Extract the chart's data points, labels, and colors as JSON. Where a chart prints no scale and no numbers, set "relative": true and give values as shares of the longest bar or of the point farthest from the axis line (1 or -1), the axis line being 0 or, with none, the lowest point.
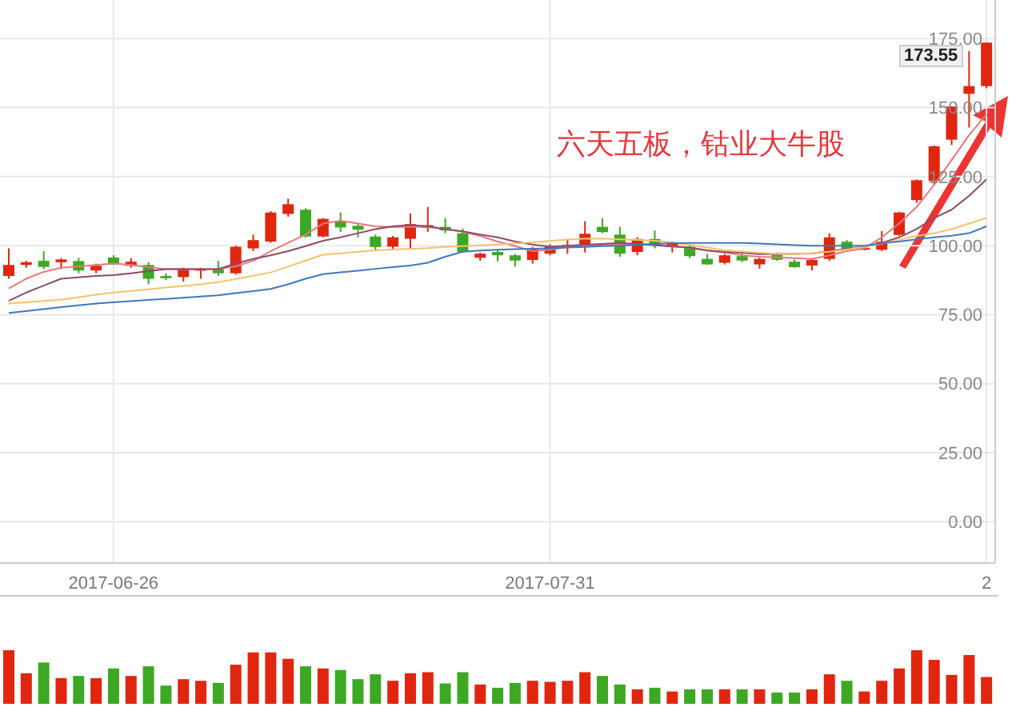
{
  "chart_data": [
    {
      "type": "candlestick",
      "annotations": [
        "六天五板，钴业大牛股",
        "173.55"
      ],
      "categories": [
        null,
        null,
        null,
        null,
        null,
        null,
        "2017-06-26",
        null,
        null,
        null,
        null,
        null,
        null,
        null,
        null,
        null,
        null,
        null,
        null,
        null,
        null,
        null,
        null,
        null,
        null,
        null,
        null,
        null,
        null,
        null,
        null,
        "2017-07-31",
        null,
        null,
        null,
        null,
        null,
        null,
        null,
        null,
        null,
        null,
        null,
        null,
        null,
        null,
        null,
        null,
        null,
        null,
        null,
        null,
        null,
        null,
        null,
        null,
        "2"
      ],
      "ohlc": [
        [
          89,
          99,
          88,
          93
        ],
        [
          93,
          94.5,
          92,
          94
        ],
        [
          94.5,
          98,
          91.5,
          92.3
        ],
        [
          94,
          95.5,
          91.5,
          95
        ],
        [
          94.4,
          95.6,
          90,
          91
        ],
        [
          91,
          93.5,
          90,
          92.7
        ],
        [
          95.7,
          96.5,
          93,
          93.2
        ],
        [
          92.7,
          95.5,
          92,
          94.2
        ],
        [
          93,
          94,
          86,
          88
        ],
        [
          89,
          90,
          87.5,
          88.2
        ],
        [
          88.6,
          92,
          87,
          91.5
        ],
        [
          91,
          92,
          88,
          91.5
        ],
        [
          91.5,
          94.5,
          89,
          90
        ],
        [
          90,
          100,
          89.5,
          99.6
        ],
        [
          99,
          104,
          98,
          102
        ],
        [
          101.5,
          112.5,
          101,
          112
        ],
        [
          111.5,
          117,
          110.5,
          115
        ],
        [
          113,
          113.5,
          103,
          103.3
        ],
        [
          103.3,
          110,
          103,
          109.7
        ],
        [
          109,
          112,
          105,
          106.6
        ],
        [
          107.2,
          108,
          103,
          105.8
        ],
        [
          103.3,
          104,
          98,
          99.5
        ],
        [
          99.6,
          103.5,
          98.5,
          103
        ],
        [
          102.5,
          111.7,
          98.7,
          107.8
        ],
        [
          106.5,
          114,
          105,
          107.4
        ],
        [
          106.8,
          110,
          104.5,
          105.5
        ],
        [
          104.5,
          106.2,
          97.5,
          97.7
        ],
        [
          95.6,
          97.5,
          94.5,
          97.1
        ],
        [
          97.7,
          98.5,
          94.3,
          96.5
        ],
        [
          96.5,
          97,
          92.4,
          94.6
        ],
        [
          94.8,
          99.5,
          93.5,
          98.7
        ],
        [
          97.1,
          100.5,
          96.5,
          99.6
        ],
        [
          100,
          102.5,
          97,
          100.2
        ],
        [
          99.5,
          108.8,
          97.5,
          104.3
        ],
        [
          106.8,
          110,
          104.5,
          104.9
        ],
        [
          104,
          106.8,
          96,
          97.1
        ],
        [
          97.7,
          103,
          96.5,
          102.4
        ],
        [
          102.4,
          105.5,
          99,
          100
        ],
        [
          99.5,
          101.5,
          97.5,
          101
        ],
        [
          99.6,
          100.5,
          95.5,
          96.2
        ],
        [
          95.2,
          97,
          93,
          93.2
        ],
        [
          93.8,
          97,
          93.2,
          96.5
        ],
        [
          96.2,
          97.2,
          94,
          94.6
        ],
        [
          93.2,
          95.6,
          91.7,
          95.2
        ],
        [
          96.7,
          97.5,
          94.5,
          94.9
        ],
        [
          94.2,
          95,
          92,
          92.2
        ],
        [
          92.8,
          95.5,
          91,
          94.8
        ],
        [
          95.2,
          104.5,
          94.5,
          103
        ],
        [
          101.4,
          102,
          98,
          98.5
        ],
        [
          98.8,
          99.5,
          98.3,
          99.1
        ],
        [
          98.5,
          105.3,
          98,
          101.4
        ],
        [
          103.9,
          112.2,
          103.5,
          112
        ],
        [
          116.5,
          124,
          115.5,
          123.7
        ],
        [
          123.4,
          136.3,
          122,
          136
        ],
        [
          138.4,
          150.5,
          136.5,
          150.4
        ],
        [
          155,
          170.5,
          142.8,
          157.8
        ],
        [
          157.8,
          173.55,
          157,
          173.55
        ]
      ],
      "colors": [
        "#e0260f",
        "#e0260f",
        "#3da823",
        "#e0260f",
        "#3da823",
        "#e0260f",
        "#3da823",
        "#e0260f",
        "#3da823",
        "#3da823",
        "#e0260f",
        "#e0260f",
        "#3da823",
        "#e0260f",
        "#e0260f",
        "#e0260f",
        "#e0260f",
        "#3da823",
        "#e0260f",
        "#3da823",
        "#3da823",
        "#3da823",
        "#e0260f",
        "#e0260f",
        "#e0260f",
        "#3da823",
        "#3da823",
        "#e0260f",
        "#3da823",
        "#3da823",
        "#e0260f",
        "#e0260f",
        "#e0260f",
        "#e0260f",
        "#3da823",
        "#3da823",
        "#e0260f",
        "#3da823",
        "#e0260f",
        "#3da823",
        "#3da823",
        "#e0260f",
        "#3da823",
        "#e0260f",
        "#3da823",
        "#3da823",
        "#e0260f",
        "#e0260f",
        "#3da823",
        "#e0260f",
        "#e0260f",
        "#e0260f",
        "#e0260f",
        "#e0260f",
        "#e0260f",
        "#e0260f",
        "#e0260f"
      ],
      "series": [
        {
          "type": "line",
          "color": "#e8787c",
          "values": [
            84.5,
            88,
            90.5,
            92,
            92.5,
            93,
            93.5,
            93,
            92.2,
            91.5,
            91.5,
            91.5,
            91.5,
            92.5,
            94.5,
            98,
            101,
            104,
            108,
            109,
            108,
            107,
            106.8,
            106.8,
            106.8,
            106,
            105,
            103.5,
            101.5,
            99.8,
            98,
            98.5,
            99.5,
            100,
            100.2,
            100.3,
            100.3,
            100.3,
            99.8,
            99.2,
            98.2,
            97.5,
            96.5,
            96,
            95.8,
            95.5,
            95.2,
            96.5,
            98,
            99,
            103,
            108,
            114,
            122,
            131,
            140,
            147.6
          ]
        },
        {
          "type": "line",
          "color": "#8e4a66",
          "values": [
            80,
            83,
            85.5,
            88,
            88.5,
            89,
            89.3,
            90,
            90.8,
            91.5,
            91.5,
            91.5,
            91.5,
            93.5,
            95.2,
            96.5,
            98,
            99.8,
            101.8,
            103,
            104.5,
            106,
            107,
            107.5,
            107,
            106,
            105.2,
            104,
            103,
            101.5,
            100.4,
            99.6,
            100,
            100.3,
            100.6,
            101,
            100.6,
            100.2,
            99.7,
            99.3,
            98.3,
            97.7,
            97.4,
            96.9,
            97,
            97,
            97.2,
            98,
            98.8,
            99.6,
            101,
            103,
            106,
            110,
            113,
            118,
            124
          ]
        },
        {
          "type": "line",
          "color": "#f5c26b",
          "values": [
            79,
            79.5,
            80,
            80.4,
            81.3,
            82.2,
            83,
            83.6,
            84.2,
            84.8,
            85.4,
            86,
            86.8,
            87.9,
            89.1,
            90.3,
            92.4,
            94.6,
            96.7,
            97.2,
            97.8,
            98.3,
            98.6,
            98.8,
            99.1,
            99.5,
            99.8,
            100.1,
            100.4,
            100.8,
            101.2,
            101.7,
            102.2,
            102.6,
            102.5,
            102.3,
            102.1,
            101.8,
            101.2,
            100.3,
            99.3,
            98.4,
            97.9,
            97.4,
            97.1,
            97,
            97.3,
            97.8,
            98.6,
            99.5,
            100.7,
            102.1,
            103.5,
            104.5,
            106,
            108,
            110
          ]
        },
        {
          "type": "line",
          "color": "#3f78bd",
          "values": [
            75.6,
            76.3,
            77,
            77.7,
            78.4,
            79,
            79.5,
            79.9,
            80.3,
            80.7,
            81.1,
            81.6,
            82,
            82.8,
            83.5,
            84.3,
            86,
            88,
            89.7,
            90.3,
            90.9,
            91.6,
            92.2,
            92.8,
            93.8,
            96,
            97.8,
            98.2,
            98.5,
            98.7,
            98.9,
            99,
            99.3,
            99.5,
            99.8,
            100,
            100.3,
            100.6,
            100.9,
            101,
            101,
            101,
            101,
            100.8,
            100.5,
            100.2,
            100,
            100,
            100,
            100,
            100.8,
            101.5,
            102.3,
            103,
            103.6,
            104.5,
            107
          ]
        }
      ],
      "ylim": [
        -15,
        189
      ],
      "yticks": [
        {
          "value": 0,
          "label": "0.00"
        },
        {
          "value": 25,
          "label": "25.00"
        },
        {
          "value": 50,
          "label": "50.00"
        },
        {
          "value": 75,
          "label": "75.00"
        },
        {
          "value": 100,
          "label": "100.00"
        },
        {
          "value": 125,
          "label": "125.00"
        },
        {
          "value": 150,
          "label": "150.00"
        },
        {
          "value": 175,
          "label": "175.00"
        }
      ],
      "grid": true,
      "legend": false,
      "marker": "none",
      "line_style": "solid"
    },
    {
      "type": "bar",
      "relative": true,
      "categories": [
        null,
        null,
        null,
        null,
        null,
        null,
        null,
        null,
        null,
        null,
        null,
        null,
        null,
        null,
        null,
        null,
        null,
        null,
        null,
        null,
        null,
        null,
        null,
        null,
        null,
        null,
        null,
        null,
        null,
        null,
        null,
        null,
        null,
        null,
        null,
        null,
        null,
        null,
        null,
        null,
        null,
        null,
        null,
        null,
        null,
        null,
        null,
        null,
        null,
        null,
        null,
        null,
        null,
        null,
        null,
        null,
        null
      ],
      "values": [
        1,
        0.57,
        0.77,
        0.48,
        0.52,
        0.48,
        0.66,
        0.52,
        0.7,
        0.34,
        0.46,
        0.43,
        0.39,
        0.73,
        0.96,
        0.96,
        0.84,
        0.7,
        0.66,
        0.63,
        0.46,
        0.55,
        0.43,
        0.57,
        0.59,
        0.38,
        0.59,
        0.36,
        0.3,
        0.39,
        0.43,
        0.41,
        0.43,
        0.59,
        0.52,
        0.36,
        0.27,
        0.3,
        0.23,
        0.27,
        0.27,
        0.27,
        0.27,
        0.27,
        0.21,
        0.21,
        0.27,
        0.55,
        0.43,
        0.23,
        0.43,
        0.66,
        1,
        0.82,
        0.54,
        0.91,
        0.5
      ],
      "colors": [
        "#e0260f",
        "#e0260f",
        "#3da823",
        "#e0260f",
        "#3da823",
        "#e0260f",
        "#3da823",
        "#e0260f",
        "#3da823",
        "#3da823",
        "#e0260f",
        "#e0260f",
        "#3da823",
        "#e0260f",
        "#e0260f",
        "#e0260f",
        "#e0260f",
        "#3da823",
        "#e0260f",
        "#3da823",
        "#3da823",
        "#3da823",
        "#e0260f",
        "#e0260f",
        "#e0260f",
        "#3da823",
        "#3da823",
        "#e0260f",
        "#3da823",
        "#3da823",
        "#e0260f",
        "#e0260f",
        "#e0260f",
        "#e0260f",
        "#3da823",
        "#3da823",
        "#e0260f",
        "#3da823",
        "#e0260f",
        "#3da823",
        "#3da823",
        "#e0260f",
        "#3da823",
        "#e0260f",
        "#3da823",
        "#3da823",
        "#e0260f",
        "#e0260f",
        "#3da823",
        "#e0260f",
        "#e0260f",
        "#e0260f",
        "#e0260f",
        "#e0260f",
        "#e0260f",
        "#e0260f",
        "#e0260f"
      ]
    }
  ]
}
